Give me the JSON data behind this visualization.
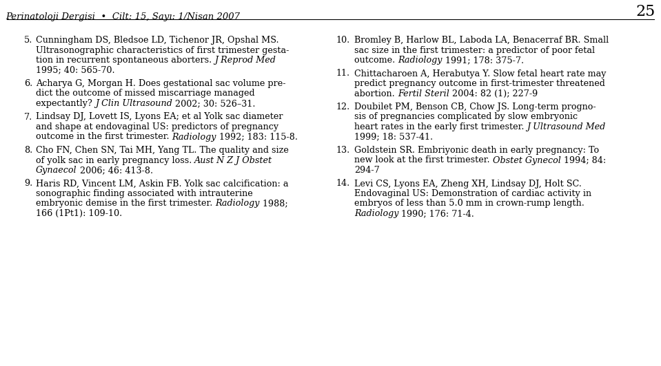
{
  "background_color": "#ffffff",
  "header_text": "Perinatoloji Dergisi  •  Cilt: 15, Sayı: 1/Nisan 2007",
  "page_number": "25",
  "header_font_size": 9.5,
  "body_font_size": 9.2,
  "left_column": [
    {
      "number": "5.",
      "lines": [
        [
          [
            "Cunningham DS, Bledsoe LD, Tichenor JR, Opshal MS.",
            "normal"
          ]
        ],
        [
          [
            "Ultrasonographic characteristics of first trimester gesta-",
            "normal"
          ]
        ],
        [
          [
            "tion in recurrent spontaneous aborters. ",
            "normal"
          ],
          [
            "J Reprod Med",
            "italic"
          ]
        ],
        [
          [
            "1995; 40: 565-70.",
            "normal"
          ]
        ]
      ]
    },
    {
      "number": "6.",
      "lines": [
        [
          [
            "Acharya G, Morgan H. Does gestational sac volume pre-",
            "normal"
          ]
        ],
        [
          [
            "dict the outcome of missed miscarriage managed",
            "normal"
          ]
        ],
        [
          [
            "expectantly? ",
            "normal"
          ],
          [
            "J Clin Ultrasound",
            "italic"
          ],
          [
            " 2002; 30: 526–31.",
            "normal"
          ]
        ]
      ]
    },
    {
      "number": "7.",
      "lines": [
        [
          [
            "Lindsay DJ, Lovett IS, Lyons EA; et al Yolk sac diameter",
            "normal"
          ]
        ],
        [
          [
            "and shape at endovaginal US: predictors of pregnancy",
            "normal"
          ]
        ],
        [
          [
            "outcome in the first trimester. ",
            "normal"
          ],
          [
            "Radiology",
            "italic"
          ],
          [
            " 1992; 183: 115-8.",
            "normal"
          ]
        ]
      ]
    },
    {
      "number": "8.",
      "lines": [
        [
          [
            "Cho FN, Chen SN, Tai MH, Yang TL. The quality and size",
            "normal"
          ]
        ],
        [
          [
            "of yolk sac in early pregnancy loss. ",
            "normal"
          ],
          [
            "Aust N Z J Obstet",
            "italic"
          ]
        ],
        [
          [
            "Gynaecol",
            "italic"
          ],
          [
            " 2006; 46: 413-8.",
            "normal"
          ]
        ]
      ]
    },
    {
      "number": "9.",
      "lines": [
        [
          [
            "Haris RD, Vincent LM, Askin FB. Yolk sac calcification: a",
            "normal"
          ]
        ],
        [
          [
            "sonographic finding associated with intrauterine",
            "normal"
          ]
        ],
        [
          [
            "embryonic demise in the first trimester. ",
            "normal"
          ],
          [
            "Radiology",
            "italic"
          ],
          [
            " 1988;",
            "normal"
          ]
        ],
        [
          [
            "166 (1Pt1): 109-10.",
            "normal"
          ]
        ]
      ]
    }
  ],
  "right_column": [
    {
      "number": "10.",
      "lines": [
        [
          [
            "Bromley B, Harlow BL, Laboda LA, Benacerraf BR. Small",
            "normal"
          ]
        ],
        [
          [
            "sac size in the first trimester: a predictor of poor fetal",
            "normal"
          ]
        ],
        [
          [
            "outcome. ",
            "normal"
          ],
          [
            "Radiology",
            "italic"
          ],
          [
            " 1991; 178: 375-7.",
            "normal"
          ]
        ]
      ]
    },
    {
      "number": "11.",
      "lines": [
        [
          [
            "Chittacharoen A, Herabutya Y. Slow fetal heart rate may",
            "normal"
          ]
        ],
        [
          [
            "predict pregnancy outcome in first-trimester threatened",
            "normal"
          ]
        ],
        [
          [
            "abortion. ",
            "normal"
          ],
          [
            "Fertil Steril",
            "italic"
          ],
          [
            " 2004: 82 (1); 227-9",
            "normal"
          ]
        ]
      ]
    },
    {
      "number": "12.",
      "lines": [
        [
          [
            "Doubilet PM, Benson CB, Chow JS. Long-term progno-",
            "normal"
          ]
        ],
        [
          [
            "sis of pregnancies complicated by slow embryonic",
            "normal"
          ]
        ],
        [
          [
            "heart rates in the early first trimester. ",
            "normal"
          ],
          [
            "J Ultrasound Med",
            "italic"
          ]
        ],
        [
          [
            "1999; 18: 537-41.",
            "normal"
          ]
        ]
      ]
    },
    {
      "number": "13.",
      "lines": [
        [
          [
            "Goldstein SR. Embriyonic death in early pregnancy: To",
            "normal"
          ]
        ],
        [
          [
            "new look at the first trimester. ",
            "normal"
          ],
          [
            "Obstet Gynecol",
            "italic"
          ],
          [
            " 1994; 84:",
            "normal"
          ]
        ],
        [
          [
            "294-7",
            "normal"
          ]
        ]
      ]
    },
    {
      "number": "14.",
      "lines": [
        [
          [
            "Levi CS, Lyons EA, Zheng XH, Lindsay DJ, Holt SC.",
            "normal"
          ]
        ],
        [
          [
            "Endovaginal US: Demonstration of cardiac activity in",
            "normal"
          ]
        ],
        [
          [
            "embryos of less than 5.0 mm in crown-rump length.",
            "normal"
          ]
        ],
        [
          [
            "Radiology",
            "italic"
          ],
          [
            " 1990; 176: 71-4.",
            "normal"
          ]
        ]
      ]
    }
  ]
}
